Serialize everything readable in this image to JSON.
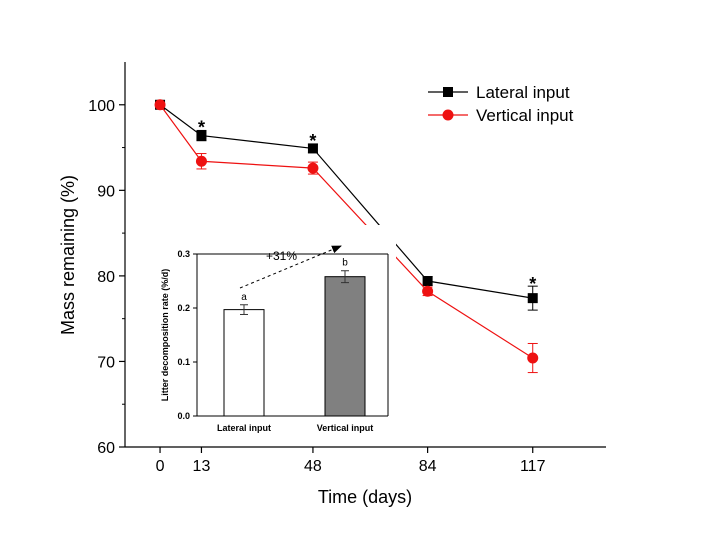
{
  "chart_data": [
    {
      "type": "line",
      "title": "",
      "xlabel": "Time (days)",
      "ylabel": "Mass remaining (%)",
      "x": [
        0,
        13,
        48,
        84,
        117
      ],
      "xticks": [
        0,
        13,
        48,
        84,
        117
      ],
      "xlim": [
        -11,
        140
      ],
      "ylim": [
        60,
        105
      ],
      "yticks": [
        60,
        70,
        80,
        90,
        100
      ],
      "grid": false,
      "legend": "top-right",
      "series": [
        {
          "name": "Lateral input",
          "color": "#000000",
          "line_color": "#000000",
          "marker": "square",
          "values": [
            100.0,
            96.4,
            94.9,
            79.4,
            77.4
          ],
          "errors": [
            0,
            0.6,
            0.5,
            0.5,
            1.4
          ]
        },
        {
          "name": "Vertical input",
          "color": "#ee1111",
          "line_color": "#ee1111",
          "marker": "circle",
          "values": [
            100.0,
            93.4,
            92.6,
            78.2,
            70.4
          ],
          "errors": [
            0,
            0.9,
            0.7,
            0.5,
            1.7
          ]
        }
      ],
      "annotations": [
        {
          "text": "*",
          "x": 13,
          "y": 97.6
        },
        {
          "text": "*",
          "x": 48,
          "y": 96.0
        },
        {
          "text": "*",
          "x": 117,
          "y": 79.3
        }
      ]
    },
    {
      "type": "bar",
      "title": "",
      "xlabel": "",
      "ylabel": "Litter decomposition rate (%/d)",
      "categories": [
        "Lateral input",
        "Vertical input"
      ],
      "values": [
        0.197,
        0.258
      ],
      "errors": [
        0.009,
        0.011
      ],
      "colors": [
        "#ffffff",
        "#808080"
      ],
      "ylim": [
        0,
        0.3
      ],
      "yticks": [
        "0.0",
        "0.1",
        "0.2",
        "0.3"
      ],
      "letters": [
        "a",
        "b"
      ],
      "annotation": "+31%",
      "grid": false
    }
  ]
}
